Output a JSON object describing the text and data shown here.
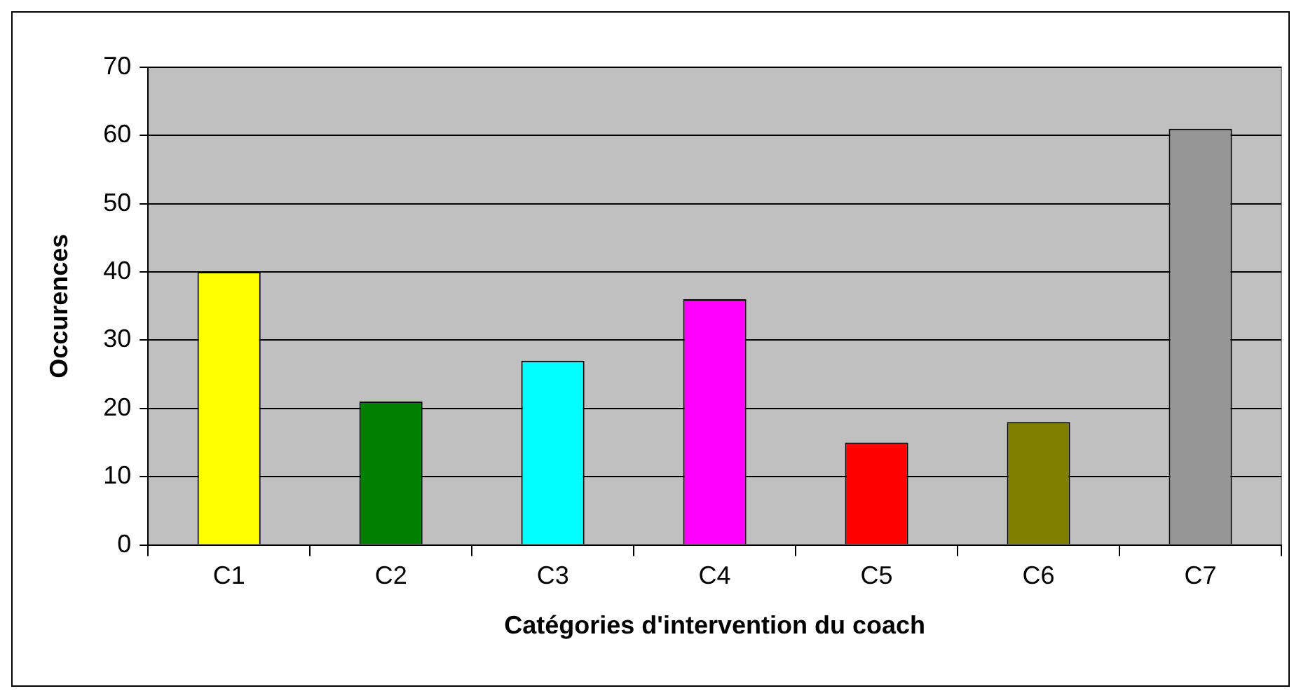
{
  "chart_data": {
    "type": "bar",
    "xlabel": "Catégories d'intervention du coach",
    "ylabel": "Occurences",
    "categories": [
      "C1",
      "C2",
      "C3",
      "C4",
      "C5",
      "C6",
      "C7"
    ],
    "values": [
      40,
      21,
      27,
      36,
      15,
      18,
      61
    ],
    "colors": [
      "#ffff00",
      "#008000",
      "#00ffff",
      "#ff00ff",
      "#ff0000",
      "#808000",
      "#969696"
    ],
    "ylim": [
      0,
      70
    ],
    "yticks": [
      0,
      10,
      20,
      30,
      40,
      50,
      60,
      70
    ],
    "grid": "y"
  }
}
